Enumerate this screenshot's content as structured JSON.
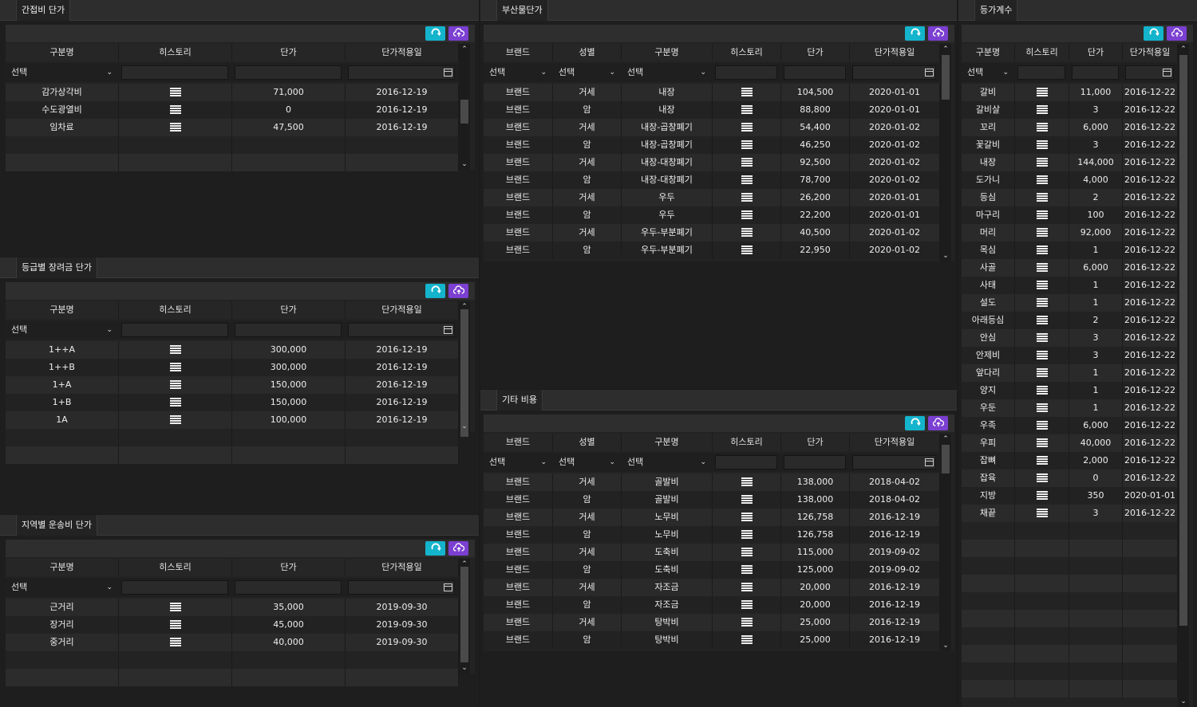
{
  "colors": {
    "refresh": "#14b4cc",
    "upload": "#7b3fd1",
    "bg": "#1e1e1e"
  },
  "icons": {
    "refresh": "refresh-icon",
    "upload": "cloud-upload-icon",
    "history": "list-icon",
    "calendar": "calendar-icon"
  },
  "select_placeholder": "선택",
  "panels": {
    "indirect": {
      "title": "간접비 단가",
      "headers": [
        "구분명",
        "히스토리",
        "단가",
        "단가적용일"
      ],
      "rows": [
        [
          "감가상각비",
          "",
          "71,000",
          "2016-12-19"
        ],
        [
          "수도광열비",
          "",
          "0",
          "2016-12-19"
        ],
        [
          "임차료",
          "",
          "47,500",
          "2016-12-19"
        ]
      ]
    },
    "grade": {
      "title": "등급별 장려금 단가",
      "headers": [
        "구분명",
        "히스토리",
        "단가",
        "단가적용일"
      ],
      "rows": [
        [
          "1++A",
          "",
          "300,000",
          "2016-12-19"
        ],
        [
          "1++B",
          "",
          "300,000",
          "2016-12-19"
        ],
        [
          "1+A",
          "",
          "150,000",
          "2016-12-19"
        ],
        [
          "1+B",
          "",
          "150,000",
          "2016-12-19"
        ],
        [
          "1A",
          "",
          "100,000",
          "2016-12-19"
        ]
      ]
    },
    "region": {
      "title": "지역별 운송비 단가",
      "headers": [
        "구분명",
        "히스토리",
        "단가",
        "단가적용일"
      ],
      "rows": [
        [
          "근거리",
          "",
          "35,000",
          "2019-09-30"
        ],
        [
          "장거리",
          "",
          "45,000",
          "2019-09-30"
        ],
        [
          "중거리",
          "",
          "40,000",
          "2019-09-30"
        ]
      ]
    },
    "byproduct": {
      "title": "부산물단가",
      "headers": [
        "브랜드",
        "성별",
        "구분명",
        "히스토리",
        "단가",
        "단가적용일"
      ],
      "rows": [
        [
          "브랜드",
          "거세",
          "내장",
          "",
          "104,500",
          "2020-01-01"
        ],
        [
          "브랜드",
          "암",
          "내장",
          "",
          "88,800",
          "2020-01-01"
        ],
        [
          "브랜드",
          "거세",
          "내장-곱창폐기",
          "",
          "54,400",
          "2020-01-02"
        ],
        [
          "브랜드",
          "암",
          "내장-곱창폐기",
          "",
          "46,250",
          "2020-01-02"
        ],
        [
          "브랜드",
          "거세",
          "내장-대창폐기",
          "",
          "92,500",
          "2020-01-02"
        ],
        [
          "브랜드",
          "암",
          "내장-대창폐기",
          "",
          "78,700",
          "2020-01-02"
        ],
        [
          "브랜드",
          "거세",
          "우두",
          "",
          "26,200",
          "2020-01-01"
        ],
        [
          "브랜드",
          "암",
          "우두",
          "",
          "22,200",
          "2020-01-01"
        ],
        [
          "브랜드",
          "거세",
          "우두-부분폐기",
          "",
          "40,500",
          "2020-01-02"
        ],
        [
          "브랜드",
          "암",
          "우두-부분폐기",
          "",
          "22,950",
          "2020-01-02"
        ]
      ]
    },
    "other": {
      "title": "기타 비용",
      "headers": [
        "브랜드",
        "성별",
        "구분명",
        "히스토리",
        "단가",
        "단가적용일"
      ],
      "rows": [
        [
          "브랜드",
          "거세",
          "골발비",
          "",
          "138,000",
          "2018-04-02"
        ],
        [
          "브랜드",
          "암",
          "골발비",
          "",
          "138,000",
          "2018-04-02"
        ],
        [
          "브랜드",
          "거세",
          "노무비",
          "",
          "126,758",
          "2016-12-19"
        ],
        [
          "브랜드",
          "암",
          "노무비",
          "",
          "126,758",
          "2016-12-19"
        ],
        [
          "브랜드",
          "거세",
          "도축비",
          "",
          "115,000",
          "2019-09-02"
        ],
        [
          "브랜드",
          "암",
          "도축비",
          "",
          "125,000",
          "2019-09-02"
        ],
        [
          "브랜드",
          "거세",
          "자조금",
          "",
          "20,000",
          "2016-12-19"
        ],
        [
          "브랜드",
          "암",
          "자조금",
          "",
          "20,000",
          "2016-12-19"
        ],
        [
          "브랜드",
          "거세",
          "탕박비",
          "",
          "25,000",
          "2016-12-19"
        ],
        [
          "브랜드",
          "암",
          "탕박비",
          "",
          "25,000",
          "2016-12-19"
        ]
      ]
    },
    "coef": {
      "title": "등가계수",
      "headers": [
        "구분명",
        "히스토리",
        "단가",
        "단가적용일"
      ],
      "rows": [
        [
          "갈비",
          "",
          "11,000",
          "2016-12-22"
        ],
        [
          "갈비살",
          "",
          "3",
          "2016-12-22"
        ],
        [
          "꼬리",
          "",
          "6,000",
          "2016-12-22"
        ],
        [
          "꽃갈비",
          "",
          "3",
          "2016-12-22"
        ],
        [
          "내장",
          "",
          "144,000",
          "2016-12-22"
        ],
        [
          "도가니",
          "",
          "4,000",
          "2016-12-22"
        ],
        [
          "등심",
          "",
          "2",
          "2016-12-22"
        ],
        [
          "마구리",
          "",
          "100",
          "2016-12-22"
        ],
        [
          "머리",
          "",
          "92,000",
          "2016-12-22"
        ],
        [
          "목심",
          "",
          "1",
          "2016-12-22"
        ],
        [
          "사골",
          "",
          "6,000",
          "2016-12-22"
        ],
        [
          "사태",
          "",
          "1",
          "2016-12-22"
        ],
        [
          "설도",
          "",
          "1",
          "2016-12-22"
        ],
        [
          "아래등심",
          "",
          "2",
          "2016-12-22"
        ],
        [
          "안심",
          "",
          "3",
          "2016-12-22"
        ],
        [
          "안제비",
          "",
          "3",
          "2016-12-22"
        ],
        [
          "앞다리",
          "",
          "1",
          "2016-12-22"
        ],
        [
          "양지",
          "",
          "1",
          "2016-12-22"
        ],
        [
          "우둔",
          "",
          "1",
          "2016-12-22"
        ],
        [
          "우족",
          "",
          "6,000",
          "2016-12-22"
        ],
        [
          "우피",
          "",
          "40,000",
          "2016-12-22"
        ],
        [
          "잡뼈",
          "",
          "2,000",
          "2016-12-22"
        ],
        [
          "잡육",
          "",
          "0",
          "2016-12-22"
        ],
        [
          "지방",
          "",
          "350",
          "2020-01-01"
        ],
        [
          "채끝",
          "",
          "3",
          "2016-12-22"
        ]
      ]
    }
  }
}
